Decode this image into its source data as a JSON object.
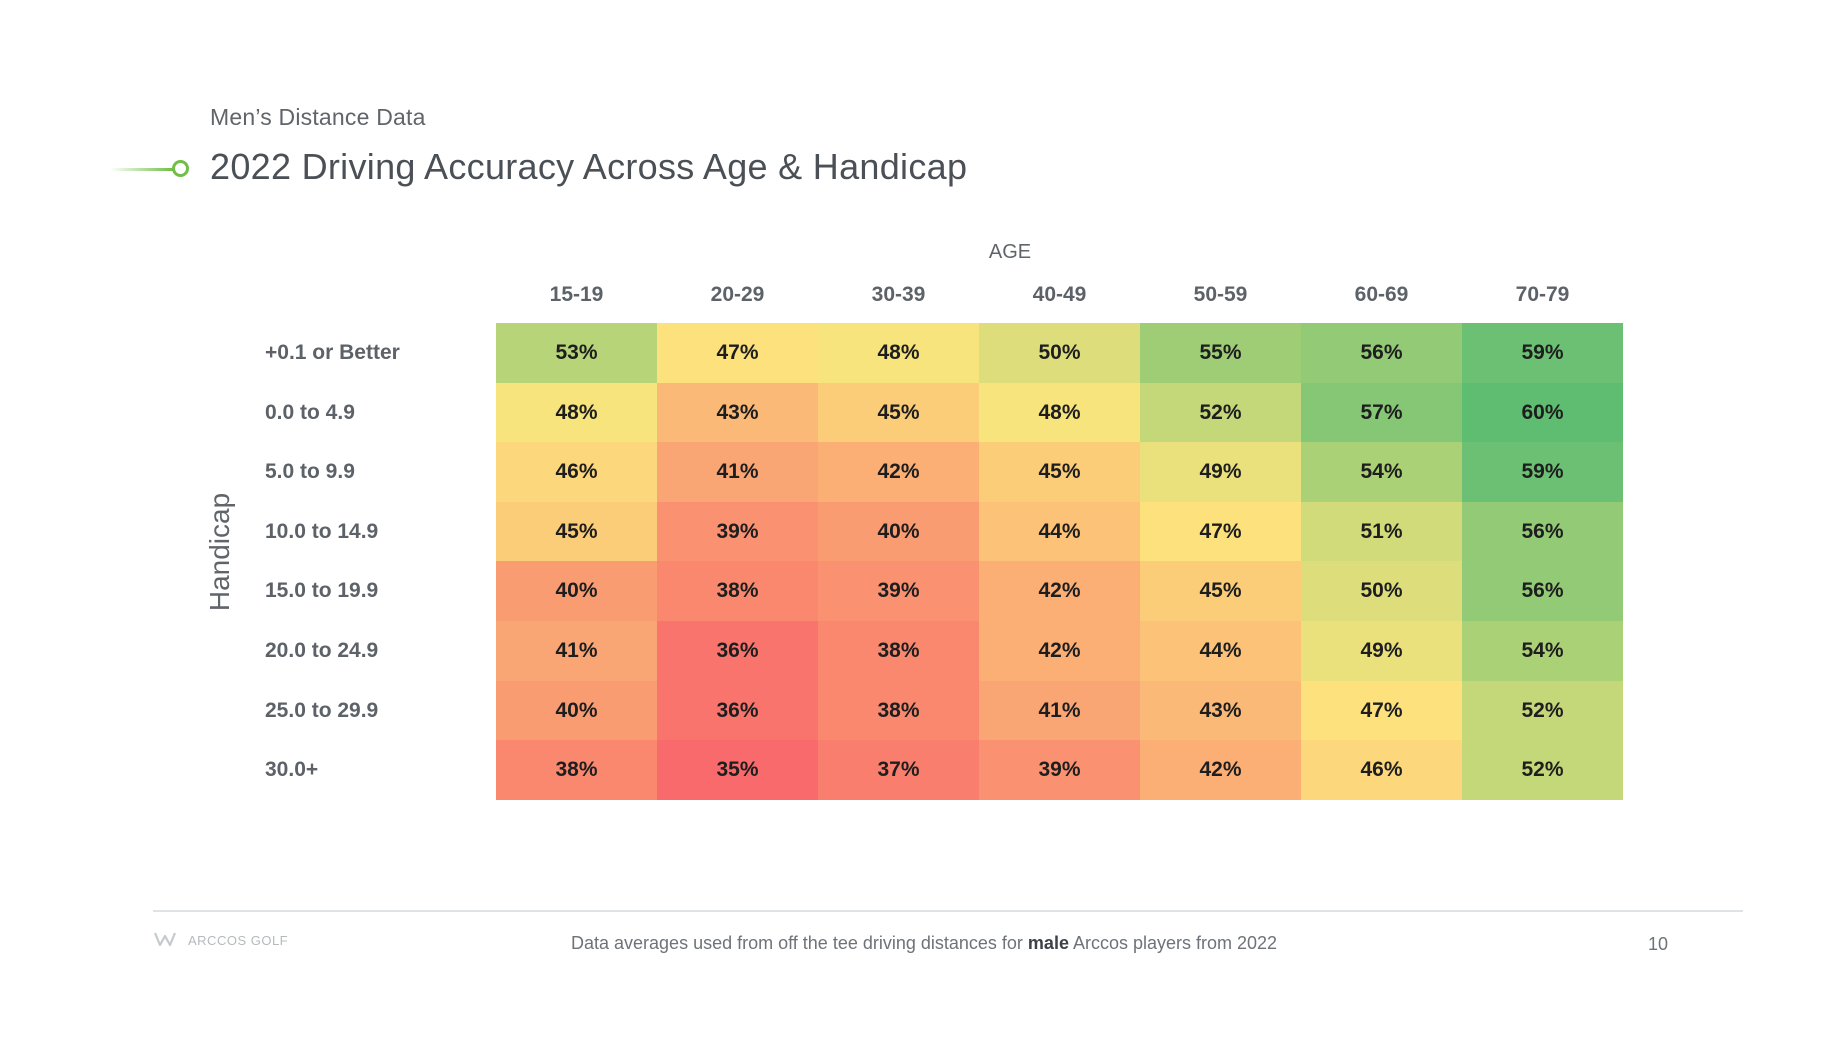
{
  "header": {
    "subtitle": "Men’s Distance Data",
    "title": "2022 Driving Accuracy Across Age & Handicap"
  },
  "chart_data": {
    "type": "heatmap",
    "title": "2022 Driving Accuracy Across Age & Handicap",
    "subtitle": "Men’s Distance Data",
    "xlabel": "AGE",
    "ylabel": "Handicap",
    "x_categories": [
      "15-19",
      "20-29",
      "30-39",
      "40-49",
      "50-59",
      "60-69",
      "70-79"
    ],
    "y_categories": [
      "+0.1 or Better",
      "0.0 to 4.9",
      "5.0 to 9.9",
      "10.0 to 14.9",
      "15.0 to 19.9",
      "20.0 to 24.9",
      "25.0 to 29.9",
      "30.0+"
    ],
    "values": [
      [
        53,
        47,
        48,
        50,
        55,
        56,
        59
      ],
      [
        48,
        43,
        45,
        48,
        52,
        57,
        60
      ],
      [
        46,
        41,
        42,
        45,
        49,
        54,
        59
      ],
      [
        45,
        39,
        40,
        44,
        47,
        51,
        56
      ],
      [
        40,
        38,
        39,
        42,
        45,
        50,
        56
      ],
      [
        41,
        36,
        38,
        42,
        44,
        49,
        54
      ],
      [
        40,
        36,
        38,
        41,
        43,
        47,
        52
      ],
      [
        38,
        35,
        37,
        39,
        42,
        46,
        52
      ]
    ],
    "value_suffix": "%",
    "color_scale": [
      "#f86a6b",
      "#fde67d",
      "#5fbd72"
    ]
  },
  "footer": {
    "logo": "ARCCOS GOLF",
    "note_before": "Data averages used from off the tee driving distances for ",
    "note_bold": "male",
    "note_after": " Arccos players from 2022",
    "page_number": "10"
  }
}
